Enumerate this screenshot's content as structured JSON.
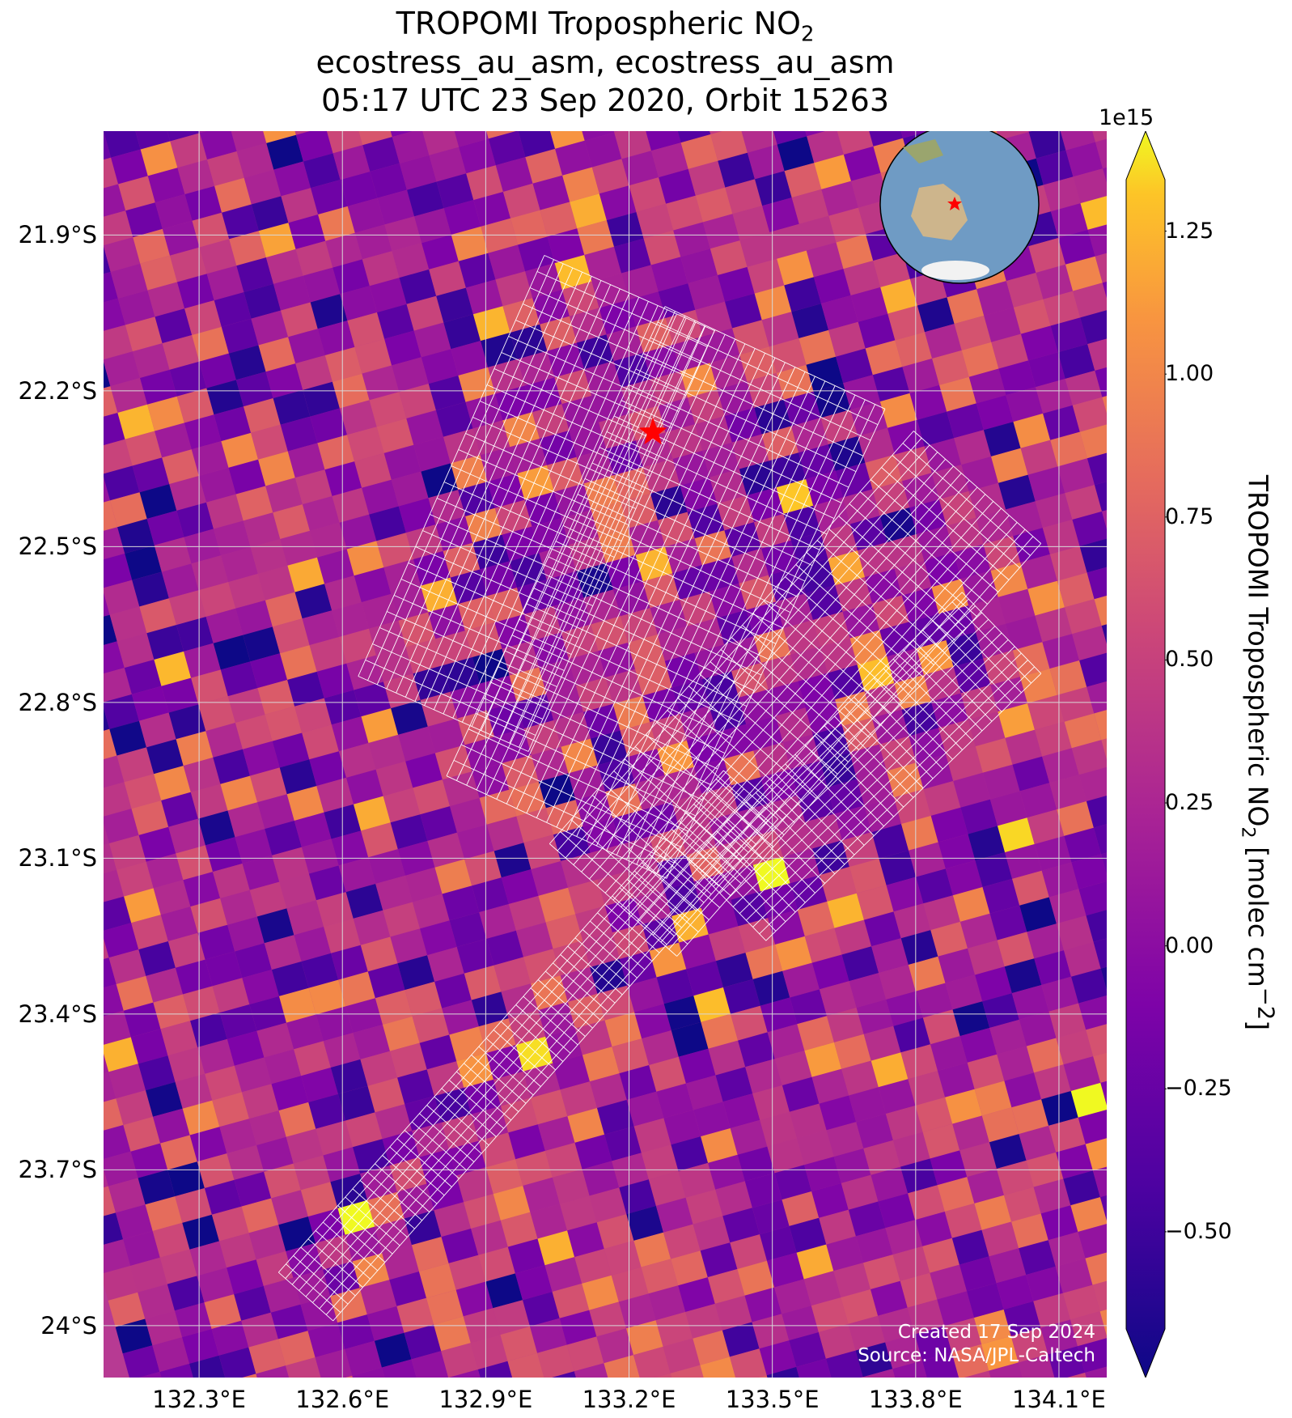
{
  "title": {
    "line1_prefix": "TROPOMI Tropospheric NO",
    "line1_sub": "2",
    "line2": "ecostress_au_asm, ecostress_au_asm",
    "line3": "05:17 UTC 23 Sep 2020, Orbit 15263"
  },
  "map": {
    "lat_labels": [
      "21.9°S",
      "22.2°S",
      "22.5°S",
      "22.8°S",
      "23.1°S",
      "23.4°S",
      "23.7°S",
      "24°S"
    ],
    "lon_labels": [
      "132.3°E",
      "132.6°E",
      "132.9°E",
      "133.2°E",
      "133.5°E",
      "133.8°E",
      "134.1°E"
    ],
    "lat_values": [
      -21.9,
      -22.2,
      -22.5,
      -22.8,
      -23.1,
      -23.4,
      -23.7,
      -24.0
    ],
    "lon_values": [
      132.3,
      132.6,
      132.9,
      133.2,
      133.5,
      133.8,
      134.1
    ],
    "lat_range": [
      -24.1,
      -21.7
    ],
    "lon_range": [
      132.1,
      134.2
    ],
    "site_marker": {
      "label": "red-star",
      "lon": 133.25,
      "lat": -22.28
    },
    "credit_line1": "Created 17 Sep 2024",
    "credit_line2": "Source: NASA/JPL-Caltech",
    "inset": "globe centered on Australia with red star"
  },
  "colorbar": {
    "exponent_label": "1e15",
    "ticks": [
      "1.25",
      "1.00",
      "0.75",
      "0.50",
      "0.25",
      "0.00",
      "−0.25",
      "−0.50"
    ],
    "tick_values": [
      1.25,
      1.0,
      0.75,
      0.5,
      0.25,
      0.0,
      -0.25,
      -0.5
    ],
    "range": [
      -0.67,
      1.34
    ],
    "label_prefix": "TROPOMI Tropospheric NO",
    "label_sub": "2",
    "label_mid": " [molec cm",
    "label_sup": "−2",
    "label_end": "]",
    "colormap": "plasma"
  },
  "colors": {
    "star": "#ff0000",
    "swath_outline": "#ffffff",
    "gridline": "#d9d9d9"
  }
}
